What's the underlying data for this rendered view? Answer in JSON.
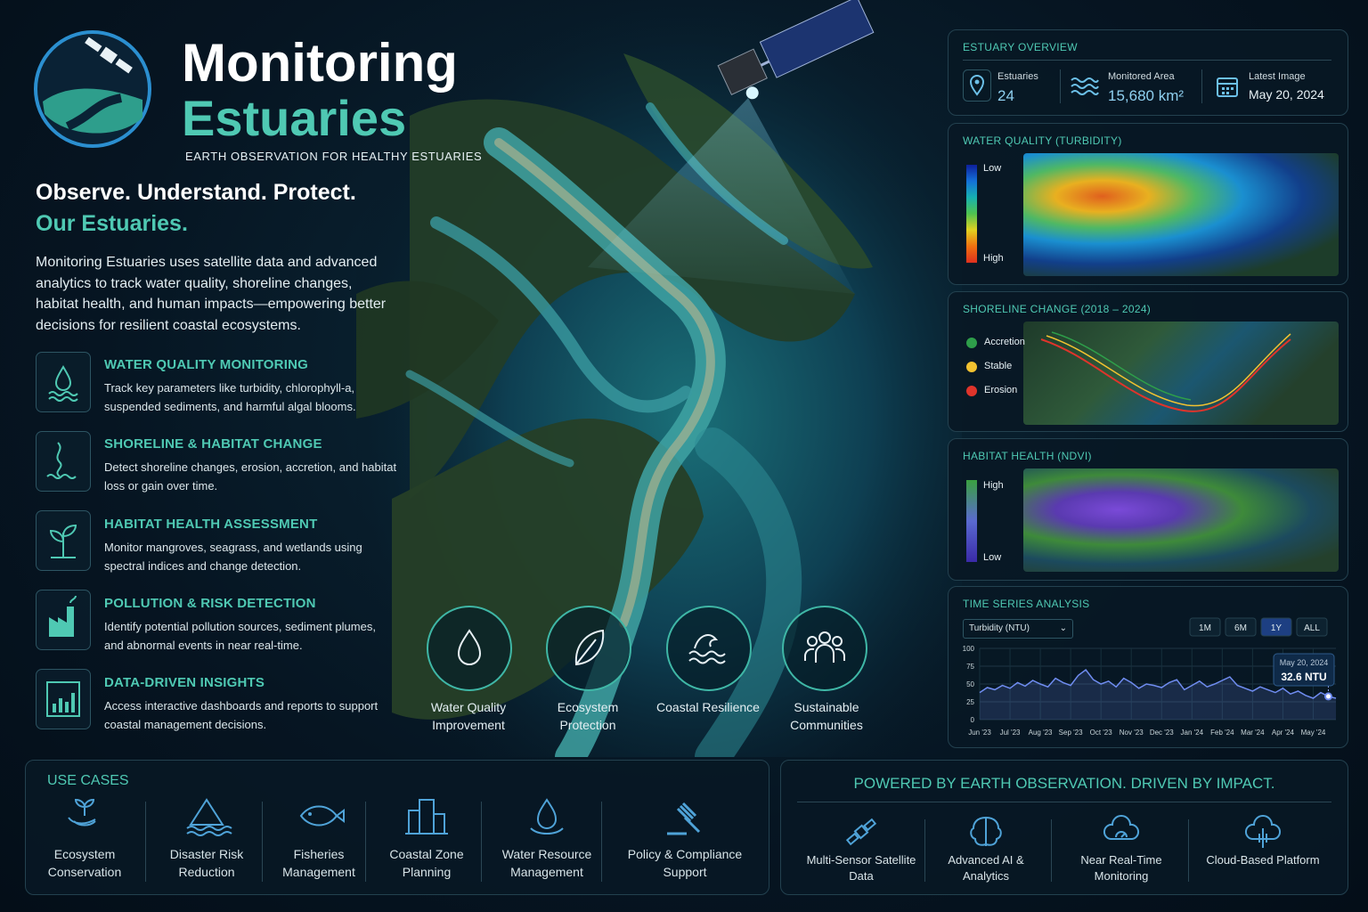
{
  "header": {
    "title_line1": "Monitoring",
    "title_line2": "Estuaries",
    "subtitle": "EARTH OBSERVATION FOR HEALTHY ESTUARIES"
  },
  "intro": {
    "headline": "Observe. Understand. Protect.",
    "headline_accent": "Our Estuaries.",
    "body": "Monitoring Estuaries uses satellite data and advanced analytics to track water quality, shoreline changes, habitat health, and human impacts—empowering better decisions for resilient coastal ecosystems."
  },
  "features": [
    {
      "title": "WATER QUALITY MONITORING",
      "text": "Track key parameters like turbidity, chlorophyll-a, suspended sediments, and harmful algal blooms."
    },
    {
      "title": "SHORELINE & HABITAT CHANGE",
      "text": "Detect shoreline changes, erosion, accretion, and habitat loss or gain over time."
    },
    {
      "title": "HABITAT HEALTH ASSESSMENT",
      "text": "Monitor mangroves, seagrass, and wetlands using spectral indices and change detection."
    },
    {
      "title": "POLLUTION & RISK DETECTION",
      "text": "Identify potential pollution sources, sediment plumes, and abnormal events in near real-time."
    },
    {
      "title": "DATA-DRIVEN INSIGHTS",
      "text": "Access interactive dashboards and reports to support coastal management decisions."
    }
  ],
  "benefits": [
    "Water Quality Improvement",
    "Ecosystem Protection",
    "Coastal Resilience",
    "Sustainable Communities"
  ],
  "overview": {
    "title": "ESTUARY OVERVIEW",
    "stats": [
      {
        "label": "Estuaries",
        "value": "24"
      },
      {
        "label": "Monitored Area",
        "value": "15,680 km²"
      },
      {
        "label": "Latest Image",
        "value": "May 20, 2024"
      }
    ]
  },
  "water_quality": {
    "title": "WATER QUALITY (TURBIDITY)",
    "legend_low": "Low",
    "legend_high": "High"
  },
  "shoreline": {
    "title": "SHORELINE CHANGE (2018 – 2024)",
    "legend": [
      {
        "label": "Accretion",
        "color": "#2e9e4a"
      },
      {
        "label": "Stable",
        "color": "#f2c230"
      },
      {
        "label": "Erosion",
        "color": "#e0342b"
      }
    ]
  },
  "habitat": {
    "title": "HABITAT HEALTH (NDVI)",
    "legend_high": "High",
    "legend_low": "Low"
  },
  "chart_data": {
    "type": "line",
    "title": "TIME SERIES ANALYSIS",
    "dropdown": "Turbidity (NTU)",
    "ranges": [
      "1M",
      "6M",
      "1Y",
      "ALL"
    ],
    "selected_range": "1Y",
    "color": "#6f8cf0",
    "categories": [
      "Jun '23",
      null,
      null,
      null,
      "Jul '23",
      null,
      null,
      null,
      "Aug '23",
      null,
      null,
      null,
      "Sep '23",
      null,
      null,
      null,
      "Oct '23",
      null,
      null,
      null,
      "Nov '23",
      null,
      null,
      null,
      "Dec '23",
      null,
      null,
      null,
      "Jan '24",
      null,
      null,
      null,
      "Feb '24",
      null,
      null,
      null,
      "Mar '24",
      null,
      null,
      null,
      "Apr '24",
      null,
      null,
      null,
      "May '24",
      null,
      null,
      null
    ],
    "values": [
      38,
      45,
      42,
      48,
      44,
      52,
      47,
      55,
      50,
      46,
      58,
      52,
      48,
      62,
      70,
      56,
      50,
      54,
      46,
      58,
      52,
      44,
      50,
      48,
      45,
      52,
      56,
      42,
      48,
      54,
      46,
      50,
      55,
      60,
      48,
      44,
      40,
      46,
      42,
      38,
      44,
      36,
      40,
      34,
      30,
      38,
      32.6,
      30
    ],
    "ylim": [
      0,
      100
    ],
    "yticks": [
      0,
      25,
      50,
      75,
      100
    ],
    "grid": true,
    "annotation": {
      "date": "May 20, 2024",
      "value": 32.6,
      "label": "32.6 NTU"
    }
  },
  "use_cases": {
    "title": "USE CASES",
    "items": [
      "Ecosystem Conservation",
      "Disaster Risk Reduction",
      "Fisheries Management",
      "Coastal Zone Planning",
      "Water Resource Management",
      "Policy & Compliance Support"
    ]
  },
  "powered": {
    "title": "POWERED BY EARTH OBSERVATION. DRIVEN BY IMPACT.",
    "items": [
      "Multi-Sensor Satellite Data",
      "Advanced AI & Analytics",
      "Near Real-Time Monitoring",
      "Cloud-Based Platform"
    ]
  }
}
